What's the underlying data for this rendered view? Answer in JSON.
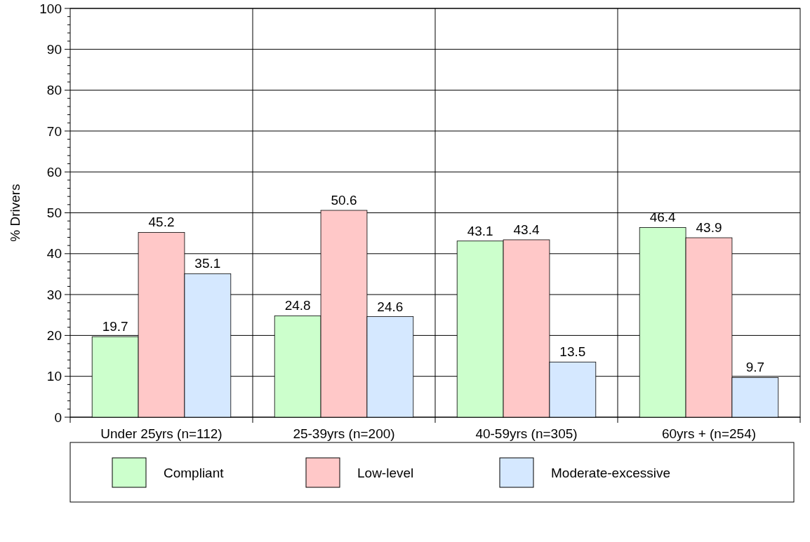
{
  "chart_data": {
    "type": "bar",
    "ylabel": "% Drivers",
    "categories": [
      "Under 25yrs (n=112)",
      "25-39yrs (n=200)",
      "40-59yrs (n=305)",
      "60yrs + (n=254)"
    ],
    "series": [
      {
        "name": "Compliant",
        "color": "#ccffcc",
        "values": [
          19.7,
          24.8,
          43.1,
          46.4
        ]
      },
      {
        "name": "Low-level",
        "color": "#ffc8c8",
        "values": [
          45.2,
          50.6,
          43.4,
          43.9
        ]
      },
      {
        "name": "Moderate-excessive",
        "color": "#d5e8ff",
        "values": [
          35.1,
          24.6,
          13.5,
          9.7
        ]
      }
    ],
    "ylim": [
      0,
      100
    ],
    "yticks": [
      0,
      {
        "value": 2,
        "label": null
      },
      {
        "value": 4,
        "label": null
      },
      {
        "value": 6,
        "label": null
      },
      {
        "value": 8,
        "label": null
      },
      10,
      {
        "value": 12,
        "label": null
      },
      {
        "value": 14,
        "label": null
      },
      {
        "value": 16,
        "label": null
      },
      {
        "value": 18,
        "label": null
      },
      20,
      {
        "value": 22,
        "label": null
      },
      {
        "value": 24,
        "label": null
      },
      {
        "value": 26,
        "label": null
      },
      {
        "value": 28,
        "label": null
      },
      30,
      {
        "value": 32,
        "label": null
      },
      {
        "value": 34,
        "label": null
      },
      {
        "value": 36,
        "label": null
      },
      {
        "value": 38,
        "label": null
      },
      40,
      {
        "value": 42,
        "label": null
      },
      {
        "value": 44,
        "label": null
      },
      {
        "value": 46,
        "label": null
      },
      {
        "value": 48,
        "label": null
      },
      50,
      {
        "value": 52,
        "label": null
      },
      {
        "value": 54,
        "label": null
      },
      {
        "value": 56,
        "label": null
      },
      {
        "value": 58,
        "label": null
      },
      60,
      {
        "value": 62,
        "label": null
      },
      {
        "value": 64,
        "label": null
      },
      {
        "value": 66,
        "label": null
      },
      {
        "value": 68,
        "label": null
      },
      70,
      {
        "value": 72,
        "label": null
      },
      {
        "value": 74,
        "label": null
      },
      {
        "value": 76,
        "label": null
      },
      {
        "value": 78,
        "label": null
      },
      80,
      {
        "value": 82,
        "label": null
      },
      {
        "value": 84,
        "label": null
      },
      {
        "value": 86,
        "label": null
      },
      {
        "value": 88,
        "label": null
      },
      90,
      {
        "value": 92,
        "label": null
      },
      {
        "value": 94,
        "label": null
      },
      {
        "value": 96,
        "label": null
      },
      {
        "value": 98,
        "label": null
      },
      100
    ],
    "grid": true,
    "data_labels": true,
    "legend": "bottom"
  }
}
